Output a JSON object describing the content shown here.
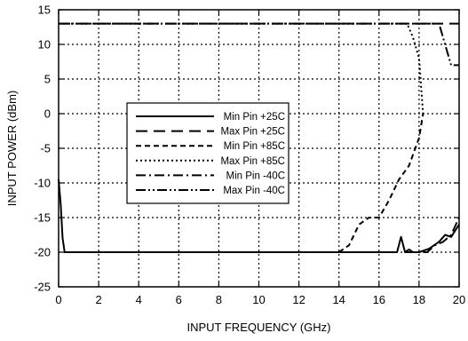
{
  "chart_data": {
    "type": "line",
    "title": "",
    "xlabel": "INPUT FREQUENCY (GHz)",
    "ylabel": "INPUT POWER (dBm)",
    "xlim": [
      0,
      20
    ],
    "ylim": [
      -25,
      15
    ],
    "x_ticks": [
      "0",
      "2",
      "4",
      "6",
      "8",
      "10",
      "12",
      "14",
      "16",
      "18",
      "20"
    ],
    "y_ticks": [
      "15",
      "10",
      "5",
      "0",
      "-5",
      "-10",
      "-15",
      "-20",
      "-25"
    ],
    "grid": true,
    "legend_position": "center-left",
    "series": [
      {
        "name": "Min Pin +25C",
        "style": "solid",
        "x": [
          0.0,
          0.1,
          0.2,
          0.3,
          0.45,
          3,
          6,
          9,
          12,
          15,
          16.9,
          17.1,
          17.3,
          17.5,
          17.7,
          18,
          18.5,
          19,
          19.3,
          19.6,
          20
        ],
        "y": [
          -9.5,
          -13,
          -18,
          -20,
          -20,
          -20,
          -20,
          -20,
          -20,
          -20,
          -20,
          -17.8,
          -20,
          -19.6,
          -20,
          -20,
          -19.5,
          -18.5,
          -17.5,
          -17.8,
          -16
        ]
      },
      {
        "name": "Max Pin +25C",
        "style": "long-dash",
        "x": [
          0,
          5,
          10,
          15,
          20
        ],
        "y": [
          13,
          13,
          13,
          13,
          13
        ]
      },
      {
        "name": "Min Pin +85C",
        "style": "dash",
        "x": [
          14,
          14.5,
          15,
          15.5,
          16,
          16.5,
          17,
          17.5,
          18,
          18.2
        ],
        "y": [
          -20,
          -19,
          -16,
          -15,
          -15,
          -12.5,
          -9.5,
          -7.5,
          -3.5,
          0
        ]
      },
      {
        "name": "Max Pin +85C",
        "style": "dot",
        "x": [
          0,
          5,
          10,
          15,
          17.4,
          17.7,
          18,
          18.2
        ],
        "y": [
          13,
          13,
          13,
          13,
          13,
          11,
          8,
          0
        ]
      },
      {
        "name": "Min Pin -40C",
        "style": "dash-dot",
        "x": [
          17.3,
          17.6,
          18,
          18.4,
          18.8,
          19.2,
          19.6,
          20
        ],
        "y": [
          -20,
          -20,
          -20,
          -20,
          -19,
          -18.5,
          -17.5,
          -15
        ]
      },
      {
        "name": "Max Pin -40C",
        "style": "dash-dot-dot",
        "x": [
          0,
          5,
          10,
          15,
          19,
          19.3,
          19.6,
          20
        ],
        "y": [
          13,
          13,
          13,
          13,
          13,
          10,
          7,
          7
        ]
      }
    ]
  }
}
